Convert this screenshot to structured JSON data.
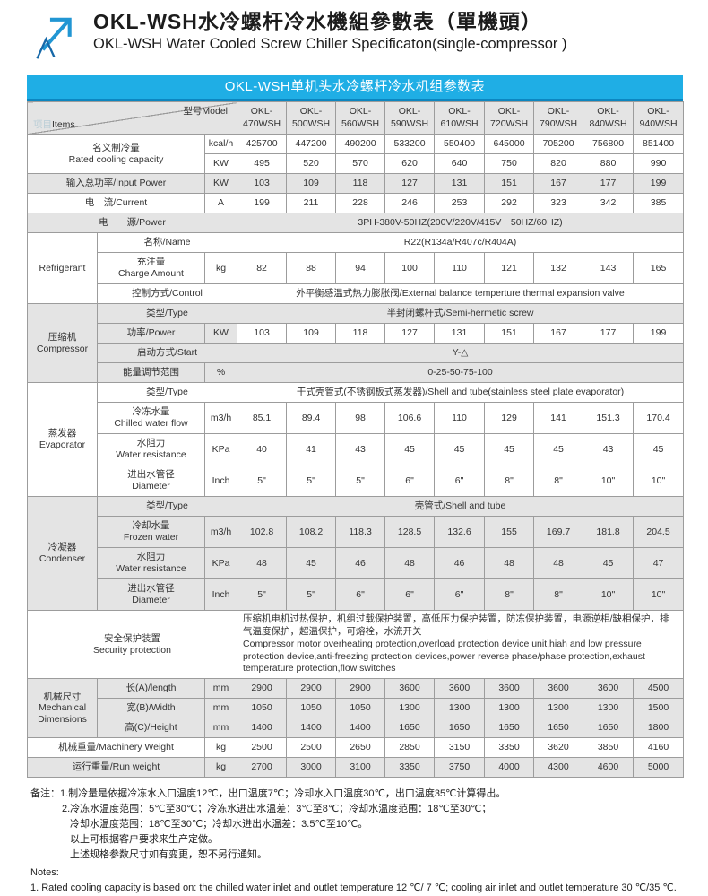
{
  "header": {
    "title_cn": "OKL-WSH水冷螺杆冷水機組參數表（單機頭）",
    "title_en": "OKL-WSH Water Cooled Screw Chiller Specificaton(single-compressor )"
  },
  "banner": {
    "text": "OKL-WSH单机头水冷螺杆冷水机组参数表"
  },
  "colors": {
    "banner": "#1faee5",
    "banner_edge": "#0c86c0",
    "shade": "#e4e4e4",
    "border": "#9c9c9c",
    "logo_blue": "#2196d3",
    "logo_dark_blue": "#1668a8"
  },
  "table": {
    "corner": {
      "items_cn": "项目",
      "items_en": "Items",
      "model": "型号Model"
    },
    "models": [
      "OKL-470WSH",
      "OKL-500WSH",
      "OKL-560WSH",
      "OKL-590WSH",
      "OKL-610WSH",
      "OKL-720WSH",
      "OKL-790WSH",
      "OKL-840WSH",
      "OKL-940WSH"
    ],
    "rows": [
      {
        "id": "rated-cooling-kcal",
        "label": "名义制冷量\nRated cooling capacity",
        "label_colspan": 2,
        "label_rowspan": 2,
        "unit": "kcal/h",
        "values": [
          425700,
          447200,
          490200,
          533200,
          550400,
          645000,
          705200,
          756800,
          851400
        ],
        "shade": "none"
      },
      {
        "id": "rated-cooling-kw",
        "unit": "KW",
        "values": [
          495,
          520,
          570,
          620,
          640,
          750,
          820,
          880,
          990
        ],
        "shade": "none"
      },
      {
        "id": "input-power",
        "label": "输入总功率/Input Power",
        "label_colspan": 2,
        "unit": "KW",
        "values": [
          103,
          109,
          118,
          127,
          131,
          151,
          167,
          177,
          199
        ],
        "shade": "all"
      },
      {
        "id": "current",
        "label": "电　流/Current",
        "label_colspan": 2,
        "unit": "A",
        "values": [
          199,
          211,
          228,
          246,
          253,
          292,
          323,
          342,
          385
        ],
        "shade": "none"
      },
      {
        "id": "power-supply",
        "label": "电　　源/Power",
        "label_colspan": 3,
        "merged": "3PH-380V-50HZ(200V/220V/415V　50HZ/60HZ)",
        "shade": "all"
      },
      {
        "id": "refrigerant-name",
        "section": "Refrigerant",
        "section_rowspan": 3,
        "label": "名称/Name",
        "label_colspan": 2,
        "merged": "R22(R134a/R407c/R404A)",
        "shade": "none"
      },
      {
        "id": "charge-amount",
        "label": "充注量\nCharge Amount",
        "unit": "kg",
        "values": [
          82,
          88,
          94,
          100,
          110,
          121,
          132,
          143,
          165
        ],
        "shade": "none"
      },
      {
        "id": "control",
        "label": "控制方式/Control",
        "label_colspan": 2,
        "merged": "外平衡感温式热力膨胀阀/External balance temperture thermal expansion valve",
        "shade": "none"
      },
      {
        "id": "compressor-type",
        "section": "压缩机\nCompressor",
        "section_rowspan": 4,
        "label": "类型/Type",
        "label_colspan": 2,
        "merged": "半封闭螺杆式/Semi-hermetic screw",
        "shade": "all"
      },
      {
        "id": "compressor-power",
        "label": "功率/Power",
        "unit": "KW",
        "values": [
          103,
          109,
          118,
          127,
          131,
          151,
          167,
          177,
          199
        ],
        "shade": "label"
      },
      {
        "id": "start-mode",
        "label": "启动方式/Start",
        "label_colspan": 2,
        "merged": "Y-△",
        "shade": "all"
      },
      {
        "id": "energy-adjust",
        "label": "能量调节范围",
        "unit": "%",
        "merged": "0-25-50-75-100",
        "shade": "all"
      },
      {
        "id": "evaporator-type",
        "section": "蒸发器\nEvaporator",
        "section_rowspan": 4,
        "label": "类型/Type",
        "label_colspan": 2,
        "merged": "干式壳管式(不锈钢板式蒸发器)/Shell and tube(stainless steel plate evaporator)",
        "shade": "none"
      },
      {
        "id": "chilled-water-flow",
        "label": "冷冻水量\nChilled water flow",
        "unit": "m3/h",
        "values": [
          85.1,
          89.4,
          98,
          106.6,
          110,
          129,
          141,
          151.3,
          170.4
        ],
        "shade": "none"
      },
      {
        "id": "evap-water-resistance",
        "label": "水阻力\nWater resistance",
        "unit": "KPa",
        "values": [
          40,
          41,
          43,
          45,
          45,
          45,
          45,
          43,
          45
        ],
        "shade": "none"
      },
      {
        "id": "evap-diameter",
        "label": "进出水管径\nDiameter",
        "unit": "Inch",
        "values": [
          "5\"",
          "5\"",
          "5\"",
          "6\"",
          "6\"",
          "8\"",
          "8\"",
          "10\"",
          "10\""
        ],
        "shade": "none"
      },
      {
        "id": "condenser-type",
        "section": "冷凝器\nCondenser",
        "section_rowspan": 4,
        "label": "类型/Type",
        "label_colspan": 2,
        "merged": "壳管式/Shell and tube",
        "shade": "all"
      },
      {
        "id": "frozen-water",
        "label": "冷却水量\nFrozen water",
        "unit": "m3/h",
        "values": [
          102.8,
          108.2,
          118.3,
          128.5,
          132.6,
          155,
          169.7,
          181.8,
          204.5
        ],
        "shade": "all"
      },
      {
        "id": "cond-water-resistance",
        "label": "水阻力\nWater resistance",
        "unit": "KPa",
        "values": [
          48,
          45,
          46,
          48,
          46,
          48,
          48,
          45,
          47
        ],
        "shade": "all"
      },
      {
        "id": "cond-diameter",
        "label": "进出水管径\nDiameter",
        "unit": "Inch",
        "values": [
          "5\"",
          "5\"",
          "6\"",
          "6\"",
          "6\"",
          "8\"",
          "8\"",
          "10\"",
          "10\""
        ],
        "shade": "all"
      },
      {
        "id": "security-protection",
        "label": "安全保护装置\nSecurity protection",
        "label_colspan": 3,
        "merged": "压缩机电机过热保护，机组过载保护装置，高低压力保护装置，防冻保护装置，电源逆相/缺相保护，排气温度保护，超温保护，可熔栓，水流开关\nCompressor motor overheating protection,overload protection device unit,hiah and low pressure protection device,anti-freezing protection devices,power reverse phase/phase protection,exhaust temperature protection,flow switches",
        "merged_align": "left",
        "shade": "none"
      },
      {
        "id": "length",
        "section": "机械尺寸\nMechanical\nDimensions",
        "section_rowspan": 3,
        "label": "长(A)/length",
        "unit": "mm",
        "values": [
          2900,
          2900,
          2900,
          3600,
          3600,
          3600,
          3600,
          3600,
          4500
        ],
        "shade": "all"
      },
      {
        "id": "width",
        "label": "宽(B)/Width",
        "unit": "mm",
        "values": [
          1050,
          1050,
          1050,
          1300,
          1300,
          1300,
          1300,
          1300,
          1500
        ],
        "shade": "all"
      },
      {
        "id": "height",
        "label": "高(C)/Height",
        "unit": "mm",
        "values": [
          1400,
          1400,
          1400,
          1650,
          1650,
          1650,
          1650,
          1650,
          1800
        ],
        "shade": "all"
      },
      {
        "id": "machinery-weight",
        "label": "机械重量/Machinery Weight",
        "label_colspan": 2,
        "unit": "kg",
        "values": [
          2500,
          2500,
          2650,
          2850,
          3150,
          3350,
          3620,
          3850,
          4160
        ],
        "shade": "none"
      },
      {
        "id": "run-weight",
        "label": "运行重量/Run weight",
        "label_colspan": 2,
        "unit": "kg",
        "values": [
          2700,
          3000,
          3100,
          3350,
          3750,
          4000,
          4300,
          4600,
          5000
        ],
        "shade": "all"
      }
    ]
  },
  "notes": {
    "cn": [
      "备注：1.制冷量是依据冷冻水入口温度12℃，出口温度7℃；冷却水入口温度30℃，出口温度35℃计算得出。",
      "2.冷冻水温度范围：5℃至30℃；冷冻水进出水温差：3℃至8℃；冷却水温度范围：18℃至30℃；",
      "冷却水温度范围：18℃至30℃；冷却水进出水温差：3.5℃至10℃。",
      "以上可根据客户要求来生产定做。",
      "上述规格参数尺寸如有变更，恕不另行通知。"
    ],
    "en": [
      "Notes:",
      "1. Rated cooling capacity is based on: the chilled water inlet and outlet temperature 12 ℃/ 7 ℃; cooling air inlet and outlet temperature 30 ℃/35 ℃."
    ]
  }
}
